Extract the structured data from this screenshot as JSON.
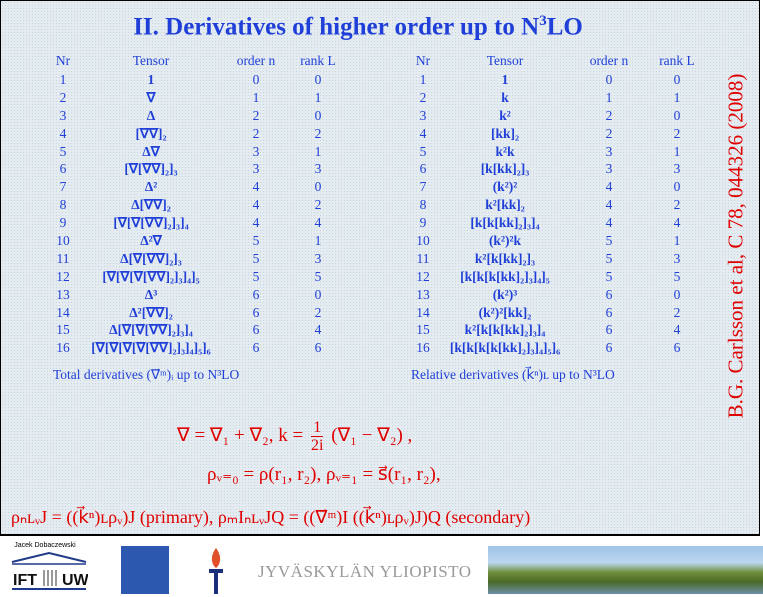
{
  "title": {
    "main": "II. Derivatives of higher order up to N",
    "sup": "3",
    "tail": "LO"
  },
  "reference": "B.G. Carlsson et al, C 78, 044326 (2008)",
  "headers": {
    "nr": "Nr",
    "tensor": "Tensor",
    "order": "order n",
    "rank": "rank L"
  },
  "left_table": [
    [
      "1",
      "1",
      "0",
      "0"
    ],
    [
      "2",
      "∇",
      "1",
      "1"
    ],
    [
      "3",
      "Δ",
      "2",
      "0"
    ],
    [
      "4",
      "[∇∇]₂",
      "2",
      "2"
    ],
    [
      "5",
      "Δ∇",
      "3",
      "1"
    ],
    [
      "6",
      "[∇[∇∇]₂]₃",
      "3",
      "3"
    ],
    [
      "7",
      "Δ²",
      "4",
      "0"
    ],
    [
      "8",
      "Δ[∇∇]₂",
      "4",
      "2"
    ],
    [
      "9",
      "[∇[∇[∇∇]₂]₃]₄",
      "4",
      "4"
    ],
    [
      "10",
      "Δ²∇",
      "5",
      "1"
    ],
    [
      "11",
      "Δ[∇[∇∇]₂]₃",
      "5",
      "3"
    ],
    [
      "12",
      "[∇[∇[∇[∇∇]₂]₃]₄]₅",
      "5",
      "5"
    ],
    [
      "13",
      "Δ³",
      "6",
      "0"
    ],
    [
      "14",
      "Δ²[∇∇]₂",
      "6",
      "2"
    ],
    [
      "15",
      "Δ[∇[∇[∇∇]₂]₃]₄",
      "6",
      "4"
    ],
    [
      "16",
      "[∇[∇[∇[∇[∇∇]₂]₃]₄]₅]₆",
      "6",
      "6"
    ]
  ],
  "right_table": [
    [
      "1",
      "1",
      "0",
      "0"
    ],
    [
      "2",
      "k",
      "1",
      "1"
    ],
    [
      "3",
      "k²",
      "2",
      "0"
    ],
    [
      "4",
      "[kk]₂",
      "2",
      "2"
    ],
    [
      "5",
      "k²k",
      "3",
      "1"
    ],
    [
      "6",
      "[k[kk]₂]₃",
      "3",
      "3"
    ],
    [
      "7",
      "(k²)²",
      "4",
      "0"
    ],
    [
      "8",
      "k²[kk]₂",
      "4",
      "2"
    ],
    [
      "9",
      "[k[k[kk]₂]₃]₄",
      "4",
      "4"
    ],
    [
      "10",
      "(k²)²k",
      "5",
      "1"
    ],
    [
      "11",
      "k²[k[kk]₂]₃",
      "5",
      "3"
    ],
    [
      "12",
      "[k[k[k[kk]₂]₃]₄]₅",
      "5",
      "5"
    ],
    [
      "13",
      "(k²)³",
      "6",
      "0"
    ],
    [
      "14",
      "(k²)²[kk]₂",
      "6",
      "2"
    ],
    [
      "15",
      "k²[k[k[kk]₂]₃]₄",
      "6",
      "4"
    ],
    [
      "16",
      "[k[k[k[k[kk]₂]₃]₄]₅]₆",
      "6",
      "6"
    ]
  ],
  "captions": {
    "left": "Total derivatives (∇⃗ᵐ)ᵢ up to N³LO",
    "right": "Relative derivatives (k⃗ⁿ)ʟ up to N³LO"
  },
  "equations": {
    "eq1_a": "∇ = ∇₁ + ∇₂,     k = ",
    "eq1_num": "1",
    "eq1_den": "2i",
    "eq1_b": " (∇₁ − ∇₂) ,",
    "eq2": "ρᵥ₌₀ = ρ(r₁, r₂),     ρᵥ₌₁ = s⃗(r₁, r₂),",
    "eq3": "ρₙʟᵥJ = ((k⃗ⁿ)ʟρᵥ)J (primary), ρₘIₙʟᵥJQ = ((∇⃗ᵐ)I ((k⃗ⁿ)ʟρᵥ)J)Q (secondary)"
  },
  "footer": {
    "author": "Jacek Dobaczewski",
    "ift_logo": "IFT UW",
    "university": "JYVÄSKYLÄN YLIOPISTO"
  },
  "colors": {
    "title": "#1f3fd8",
    "equations": "#e00000",
    "background": "#e4ecf1"
  }
}
